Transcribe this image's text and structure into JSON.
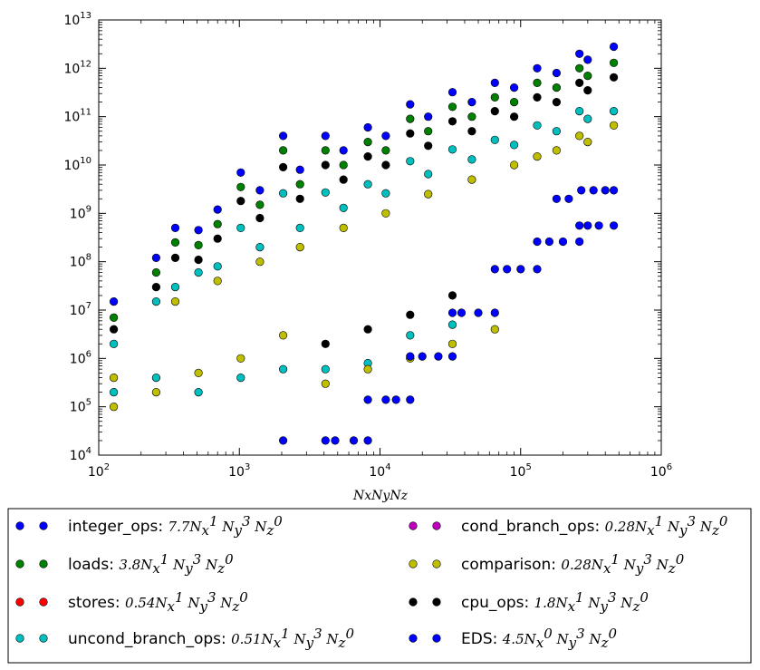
{
  "chart_data": {
    "type": "scatter",
    "title": "",
    "xlabel": "NxNyNz",
    "ylabel": "",
    "xscale": "log",
    "yscale": "log",
    "xlim": [
      100,
      1000000
    ],
    "ylim": [
      10000,
      10000000000000
    ],
    "x_ticks": [
      {
        "value": 100,
        "base": "10",
        "exp": "2"
      },
      {
        "value": 1000,
        "base": "10",
        "exp": "3"
      },
      {
        "value": 10000,
        "base": "10",
        "exp": "4"
      },
      {
        "value": 100000,
        "base": "10",
        "exp": "5"
      },
      {
        "value": 1000000,
        "base": "10",
        "exp": "6"
      }
    ],
    "y_ticks": [
      {
        "value": 10000,
        "base": "10",
        "exp": "4"
      },
      {
        "value": 100000,
        "base": "10",
        "exp": "5"
      },
      {
        "value": 1000000,
        "base": "10",
        "exp": "6"
      },
      {
        "value": 10000000,
        "base": "10",
        "exp": "7"
      },
      {
        "value": 100000000,
        "base": "10",
        "exp": "8"
      },
      {
        "value": 1000000000,
        "base": "10",
        "exp": "9"
      },
      {
        "value": 10000000000,
        "base": "10",
        "exp": "10"
      },
      {
        "value": 100000000000,
        "base": "10",
        "exp": "11"
      },
      {
        "value": 1000000000000,
        "base": "10",
        "exp": "12"
      },
      {
        "value": 10000000000000,
        "base": "10",
        "exp": "13"
      }
    ],
    "legend_position": "below",
    "legend_columns": 2,
    "series": [
      {
        "name": "integer_ops",
        "color": "#0000ff",
        "coef": "7.7",
        "exps": [
          "1",
          "3",
          "0"
        ],
        "points": [
          [
            128,
            15000000
          ],
          [
            256,
            120000000
          ],
          [
            512,
            450000000
          ],
          [
            1024,
            7000000000
          ],
          [
            2048,
            40000000000
          ],
          [
            4096,
            40000000000
          ],
          [
            8192,
            60000000000
          ],
          [
            16384,
            180000000000
          ],
          [
            32768,
            320000000000
          ],
          [
            65536,
            500000000000
          ],
          [
            131072,
            1000000000000
          ],
          [
            262144,
            2000000000000
          ],
          [
            460000,
            2800000000000
          ],
          [
            300000,
            1500000000000
          ],
          [
            180000,
            800000000000
          ],
          [
            90000,
            400000000000
          ],
          [
            45000,
            200000000000
          ],
          [
            22000,
            100000000000
          ],
          [
            11000,
            40000000000
          ],
          [
            5500,
            20000000000
          ],
          [
            2700,
            8000000000
          ],
          [
            1400,
            3000000000
          ],
          [
            700,
            1200000000
          ],
          [
            350,
            500000000
          ]
        ]
      },
      {
        "name": "loads",
        "color": "#008000",
        "coef": "3.8",
        "exps": [
          "1",
          "3",
          "0"
        ],
        "points": [
          [
            128,
            7000000
          ],
          [
            256,
            60000000
          ],
          [
            512,
            220000000
          ],
          [
            1024,
            3500000000
          ],
          [
            2048,
            20000000000
          ],
          [
            4096,
            20000000000
          ],
          [
            8192,
            30000000000
          ],
          [
            16384,
            90000000000
          ],
          [
            32768,
            160000000000
          ],
          [
            65536,
            250000000000
          ],
          [
            131072,
            500000000000
          ],
          [
            262144,
            1000000000000
          ],
          [
            460000,
            1300000000000
          ],
          [
            300000,
            700000000000
          ],
          [
            180000,
            400000000000
          ],
          [
            90000,
            200000000000
          ],
          [
            45000,
            100000000000
          ],
          [
            22000,
            50000000000
          ],
          [
            11000,
            20000000000
          ],
          [
            5500,
            10000000000
          ],
          [
            2700,
            4000000000
          ],
          [
            1400,
            1500000000
          ],
          [
            700,
            600000000
          ],
          [
            350,
            250000000
          ]
        ]
      },
      {
        "name": "stores",
        "color": "#ff0000",
        "coef": "0.54",
        "exps": [
          "1",
          "3",
          "0"
        ],
        "points": []
      },
      {
        "name": "uncond_branch_ops",
        "color": "#00bfbf",
        "coef": "0.51",
        "exps": [
          "1",
          "3",
          "0"
        ],
        "points": [
          [
            128,
            2000000
          ],
          [
            256,
            15000000
          ],
          [
            512,
            60000000
          ],
          [
            1024,
            500000000
          ],
          [
            2048,
            2600000000
          ],
          [
            4096,
            2700000000
          ],
          [
            8192,
            4000000000
          ],
          [
            16384,
            12000000000
          ],
          [
            32768,
            21000000000
          ],
          [
            65536,
            33000000000
          ],
          [
            131072,
            66000000000
          ],
          [
            262144,
            130000000000
          ],
          [
            460000,
            130000000000
          ],
          [
            300000,
            90000000000
          ],
          [
            180000,
            50000000000
          ],
          [
            90000,
            26000000000
          ],
          [
            45000,
            13000000000
          ],
          [
            22000,
            6500000000
          ],
          [
            11000,
            2600000000
          ],
          [
            5500,
            1300000000
          ],
          [
            2700,
            500000000
          ],
          [
            1400,
            200000000
          ],
          [
            700,
            80000000
          ],
          [
            350,
            30000000
          ],
          [
            128,
            200000
          ],
          [
            256,
            400000
          ],
          [
            512,
            200000
          ],
          [
            1024,
            400000
          ],
          [
            2048,
            600000
          ],
          [
            4096,
            600000
          ],
          [
            8192,
            800000
          ],
          [
            16384,
            3000000
          ],
          [
            32768,
            5000000
          ]
        ]
      },
      {
        "name": "cond_branch_ops",
        "color": "#bf00bf",
        "coef": "0.28",
        "exps": [
          "1",
          "3",
          "0"
        ],
        "points": []
      },
      {
        "name": "comparison",
        "color": "#bfbf00",
        "coef": "0.28",
        "exps": [
          "1",
          "3",
          "0"
        ],
        "points": [
          [
            128,
            100000
          ],
          [
            256,
            200000
          ],
          [
            512,
            500000
          ],
          [
            1024,
            1000000
          ],
          [
            2048,
            3000000
          ],
          [
            4096,
            300000
          ],
          [
            8192,
            600000
          ],
          [
            16384,
            1000000
          ],
          [
            32768,
            2000000
          ],
          [
            65536,
            4000000
          ],
          [
            131072,
            15000000000
          ],
          [
            262144,
            40000000000
          ],
          [
            460000,
            66000000000
          ],
          [
            300000,
            30000000000
          ],
          [
            180000,
            20000000000
          ],
          [
            90000,
            10000000000
          ],
          [
            45000,
            5000000000
          ],
          [
            22000,
            2500000000
          ],
          [
            11000,
            1000000000
          ],
          [
            5500,
            500000000
          ],
          [
            2700,
            200000000
          ],
          [
            1400,
            100000000
          ],
          [
            700,
            40000000
          ],
          [
            350,
            15000000
          ],
          [
            128,
            400000
          ]
        ]
      },
      {
        "name": "cpu_ops",
        "color": "#000000",
        "coef": "1.8",
        "exps": [
          "1",
          "3",
          "0"
        ],
        "points": [
          [
            128,
            4000000
          ],
          [
            256,
            30000000
          ],
          [
            512,
            110000000
          ],
          [
            1024,
            1800000000
          ],
          [
            2048,
            9000000000
          ],
          [
            4096,
            10000000000
          ],
          [
            8192,
            15000000000
          ],
          [
            16384,
            45000000000
          ],
          [
            32768,
            80000000000
          ],
          [
            65536,
            130000000000
          ],
          [
            131072,
            250000000000
          ],
          [
            262144,
            500000000000
          ],
          [
            460000,
            650000000000
          ],
          [
            300000,
            350000000000
          ],
          [
            180000,
            200000000000
          ],
          [
            90000,
            100000000000
          ],
          [
            45000,
            50000000000
          ],
          [
            22000,
            25000000000
          ],
          [
            11000,
            10000000000
          ],
          [
            5500,
            5000000000
          ],
          [
            2700,
            2000000000
          ],
          [
            1400,
            800000000
          ],
          [
            700,
            300000000
          ],
          [
            350,
            120000000
          ],
          [
            4096,
            2000000
          ],
          [
            8192,
            4000000
          ],
          [
            16384,
            8000000
          ],
          [
            32768,
            20000000
          ]
        ]
      },
      {
        "name": "EDS",
        "color": "#0000ff",
        "coef": "4.5",
        "exps": [
          "0",
          "3",
          "0"
        ],
        "points": [
          [
            2048,
            20000
          ],
          [
            4096,
            20000
          ],
          [
            4800,
            20000
          ],
          [
            6500,
            20000
          ],
          [
            8192,
            20000
          ],
          [
            8192,
            140000
          ],
          [
            11000,
            140000
          ],
          [
            13000,
            140000
          ],
          [
            16384,
            140000
          ],
          [
            16384,
            1100000
          ],
          [
            20000,
            1100000
          ],
          [
            26000,
            1100000
          ],
          [
            32768,
            1100000
          ],
          [
            32768,
            8800000
          ],
          [
            38000,
            8800000
          ],
          [
            50000,
            8800000
          ],
          [
            65536,
            8800000
          ],
          [
            65536,
            70000000
          ],
          [
            80000,
            70000000
          ],
          [
            100000,
            70000000
          ],
          [
            131072,
            70000000
          ],
          [
            131072,
            260000000
          ],
          [
            160000,
            260000000
          ],
          [
            200000,
            260000000
          ],
          [
            262144,
            260000000
          ],
          [
            262144,
            560000000
          ],
          [
            300000,
            560000000
          ],
          [
            360000,
            560000000
          ],
          [
            460000,
            560000000
          ],
          [
            460000,
            3000000000
          ],
          [
            400000,
            3000000000
          ],
          [
            330000,
            3000000000
          ],
          [
            270000,
            3000000000
          ],
          [
            220000,
            2000000000
          ],
          [
            180000,
            2000000000
          ]
        ]
      }
    ]
  }
}
